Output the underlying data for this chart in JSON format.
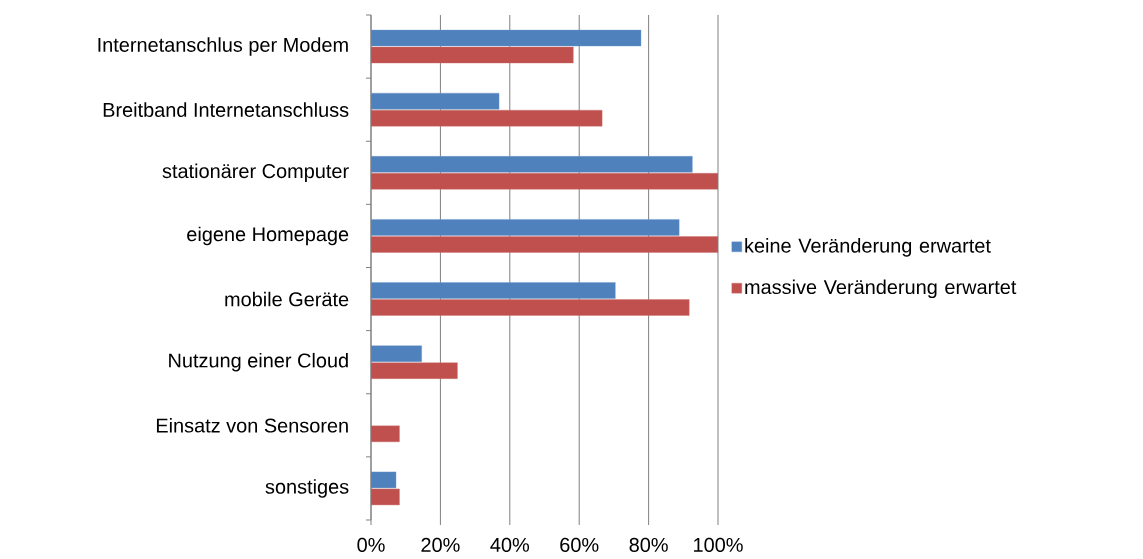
{
  "chart_data": {
    "type": "bar",
    "orientation": "horizontal",
    "categories": [
      "Internetanschlus per Modem",
      "Breitband Internetanschluss",
      "stationärer Computer",
      "eigene Homepage",
      "mobile Geräte",
      "Nutzung einer Cloud",
      "Einsatz von Sensoren",
      "sonstiges"
    ],
    "series": [
      {
        "name": "keine Veränderung erwartet",
        "color": "#4f81bd",
        "values": [
          77.8,
          36.9,
          92.6,
          88.8,
          70.4,
          14.6,
          0,
          7.2
        ]
      },
      {
        "name": "massive Veränderung erwartet",
        "color": "#c0504d",
        "values": [
          58.3,
          66.6,
          100,
          100,
          91.7,
          24.9,
          8.2,
          8.2
        ]
      }
    ],
    "xlim": [
      0,
      100
    ],
    "xticks": [
      {
        "value": 0,
        "label": "0%"
      },
      {
        "value": 20,
        "label": "20%"
      },
      {
        "value": 40,
        "label": "40%"
      },
      {
        "value": 60,
        "label": "60%"
      },
      {
        "value": 80,
        "label": "80%"
      },
      {
        "value": 100,
        "label": "100%"
      }
    ],
    "grid": "x",
    "legend": "right"
  }
}
